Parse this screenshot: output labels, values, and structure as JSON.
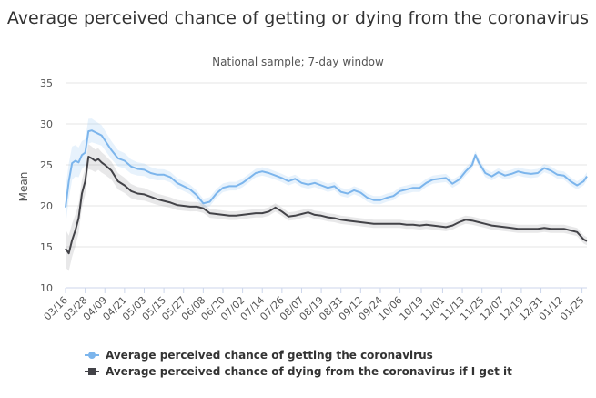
{
  "chart_data": {
    "type": "line",
    "title": "Average perceived chance of getting or dying from the coronavirus",
    "subtitle": "National sample; 7-day window",
    "ylabel": "Mean",
    "xlabel": "",
    "ylim": [
      10,
      35
    ],
    "y_ticks": [
      "10",
      "15",
      "20",
      "25",
      "30",
      "35"
    ],
    "x_tick_labels": [
      "03/16",
      "03/28",
      "04/09",
      "04/21",
      "05/03",
      "05/15",
      "05/27",
      "06/08",
      "06/20",
      "07/02",
      "07/14",
      "07/26",
      "08/07",
      "08/19",
      "08/31",
      "09/12",
      "09/24",
      "10/06",
      "10/19",
      "11/01",
      "11/13",
      "11/25",
      "12/07",
      "12/19",
      "12/31",
      "01/12",
      "01/25"
    ],
    "x_tick_days": [
      0,
      12,
      24,
      36,
      48,
      60,
      72,
      84,
      96,
      108,
      120,
      132,
      144,
      156,
      168,
      180,
      192,
      204,
      217,
      230,
      242,
      254,
      266,
      278,
      290,
      302,
      315
    ],
    "grid": true,
    "legend_position": "bottom-left",
    "series": [
      {
        "name": "Average perceived chance of getting the coronavirus",
        "color": "#7cb5ec",
        "x": [
          0,
          2,
          4,
          6,
          8,
          10,
          12,
          14,
          16,
          18,
          20,
          22,
          24,
          28,
          32,
          36,
          40,
          44,
          48,
          52,
          56,
          60,
          64,
          68,
          72,
          76,
          80,
          84,
          88,
          92,
          96,
          100,
          104,
          108,
          112,
          116,
          120,
          124,
          128,
          132,
          136,
          140,
          144,
          148,
          152,
          156,
          160,
          164,
          168,
          172,
          176,
          180,
          184,
          188,
          192,
          196,
          200,
          204,
          208,
          212,
          216,
          220,
          224,
          228,
          232,
          236,
          240,
          244,
          248,
          250,
          252,
          256,
          260,
          264,
          268,
          272,
          276,
          280,
          284,
          288,
          292,
          296,
          300,
          304,
          308,
          312,
          316,
          318
        ],
        "values": [
          19.8,
          23,
          25.2,
          25.5,
          25.3,
          26.2,
          26.5,
          29.1,
          29.2,
          29,
          28.8,
          28.6,
          28,
          26.8,
          25.8,
          25.5,
          24.8,
          24.5,
          24.4,
          24,
          23.8,
          23.8,
          23.5,
          22.8,
          22.4,
          22,
          21.3,
          20.3,
          20.5,
          21.5,
          22.2,
          22.4,
          22.4,
          22.8,
          23.4,
          24,
          24.2,
          24,
          23.7,
          23.4,
          23,
          23.3,
          22.8,
          22.6,
          22.8,
          22.5,
          22.2,
          22.4,
          21.7,
          21.5,
          21.9,
          21.6,
          21.0,
          20.7,
          20.7,
          21.0,
          21.2,
          21.8,
          22.0,
          22.2,
          22.2,
          22.8,
          23.2,
          23.3,
          23.4,
          22.7,
          23.2,
          24.2,
          25.0,
          26.2,
          25.3,
          24,
          23.6,
          24.1,
          23.7,
          23.9,
          24.2,
          24,
          23.9,
          24,
          24.6,
          24.3,
          23.8,
          23.7,
          23.0,
          22.5,
          23,
          23.6
        ]
      },
      {
        "name": "Average perceived chance of dying from the coronavirus if I get it",
        "color": "#434348",
        "x": [
          0,
          2,
          4,
          6,
          8,
          10,
          12,
          14,
          16,
          18,
          20,
          22,
          24,
          28,
          32,
          36,
          40,
          44,
          48,
          52,
          56,
          60,
          64,
          68,
          72,
          76,
          80,
          84,
          88,
          92,
          96,
          100,
          104,
          108,
          112,
          116,
          120,
          124,
          128,
          132,
          136,
          140,
          144,
          148,
          152,
          156,
          160,
          164,
          168,
          172,
          176,
          180,
          184,
          188,
          192,
          196,
          200,
          204,
          208,
          212,
          216,
          220,
          224,
          228,
          232,
          236,
          240,
          244,
          248,
          252,
          256,
          260,
          264,
          268,
          272,
          276,
          280,
          284,
          288,
          292,
          296,
          300,
          304,
          308,
          312,
          316,
          318
        ],
        "values": [
          14.8,
          14.2,
          15.8,
          17,
          18.5,
          21.5,
          23,
          26,
          25.8,
          25.5,
          25.7,
          25.3,
          25,
          24.3,
          23,
          22.5,
          21.8,
          21.5,
          21.4,
          21.1,
          20.8,
          20.6,
          20.4,
          20.1,
          20,
          19.9,
          19.9,
          19.7,
          19.1,
          19.0,
          18.9,
          18.8,
          18.8,
          18.9,
          19.0,
          19.1,
          19.1,
          19.3,
          19.8,
          19.3,
          18.7,
          18.8,
          19.0,
          19.2,
          18.9,
          18.8,
          18.6,
          18.5,
          18.3,
          18.2,
          18.1,
          18.0,
          17.9,
          17.8,
          17.8,
          17.8,
          17.8,
          17.8,
          17.7,
          17.7,
          17.6,
          17.7,
          17.6,
          17.5,
          17.4,
          17.6,
          18.0,
          18.3,
          18.2,
          18.0,
          17.8,
          17.6,
          17.5,
          17.4,
          17.3,
          17.2,
          17.2,
          17.2,
          17.2,
          17.3,
          17.2,
          17.2,
          17.2,
          17.0,
          16.8,
          15.9,
          15.7
        ]
      }
    ]
  }
}
